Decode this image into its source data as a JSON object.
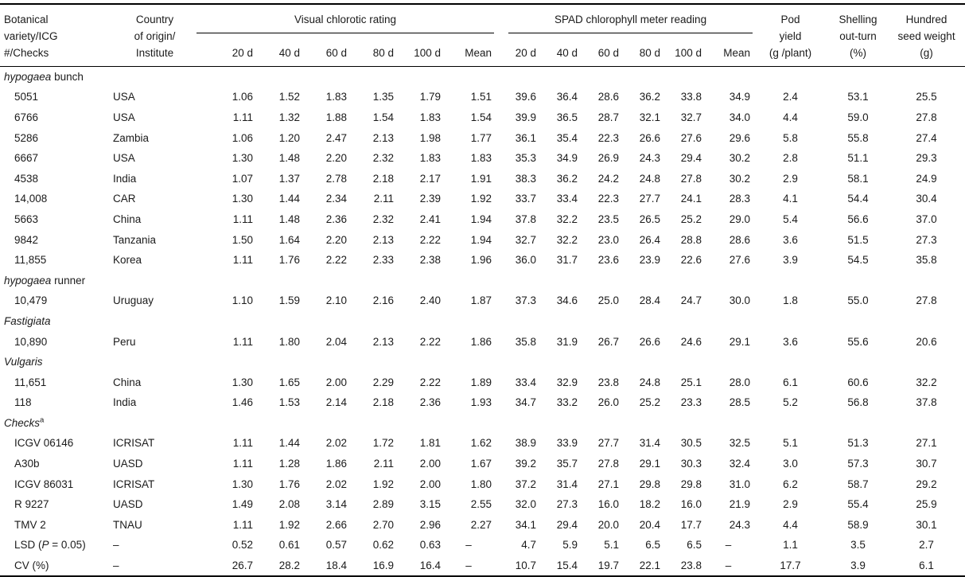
{
  "table": {
    "headers": {
      "col_name": [
        "Botanical",
        "variety/ICG",
        "#/Checks"
      ],
      "col_country": [
        "Country",
        "of origin/",
        "Institute"
      ],
      "group_visual": "Visual chlorotic rating",
      "group_spad": "SPAD chlorophyll meter reading",
      "sub_columns": [
        "20 d",
        "40 d",
        "60 d",
        "80 d",
        "100 d",
        "Mean"
      ],
      "col_pod": [
        "Pod",
        "yield",
        "(g /plant)"
      ],
      "col_shelling": [
        "Shelling",
        "out-turn",
        "(%)"
      ],
      "col_hsw": [
        "Hundred",
        "seed weight",
        "(g)"
      ]
    },
    "rows": [
      {
        "type": "section",
        "segments": [
          {
            "text": "hypogaea",
            "italic": true
          },
          {
            "text": " bunch"
          }
        ]
      },
      {
        "type": "data",
        "name": "5051",
        "country": "USA",
        "visual": [
          "1.06",
          "1.52",
          "1.83",
          "1.35",
          "1.79",
          "1.51"
        ],
        "spad": [
          "39.6",
          "36.4",
          "28.6",
          "36.2",
          "33.8",
          "34.9"
        ],
        "pod": "2.4",
        "shelling": "53.1",
        "hsw": "25.5"
      },
      {
        "type": "data",
        "name": "6766",
        "country": "USA",
        "visual": [
          "1.11",
          "1.32",
          "1.88",
          "1.54",
          "1.83",
          "1.54"
        ],
        "spad": [
          "39.9",
          "36.5",
          "28.7",
          "32.1",
          "32.7",
          "34.0"
        ],
        "pod": "4.4",
        "shelling": "59.0",
        "hsw": "27.8"
      },
      {
        "type": "data",
        "name": "5286",
        "country": "Zambia",
        "visual": [
          "1.06",
          "1.20",
          "2.47",
          "2.13",
          "1.98",
          "1.77"
        ],
        "spad": [
          "36.1",
          "35.4",
          "22.3",
          "26.6",
          "27.6",
          "29.6"
        ],
        "pod": "5.8",
        "shelling": "55.8",
        "hsw": "27.4"
      },
      {
        "type": "data",
        "name": "6667",
        "country": "USA",
        "visual": [
          "1.30",
          "1.48",
          "2.20",
          "2.32",
          "1.83",
          "1.83"
        ],
        "spad": [
          "35.3",
          "34.9",
          "26.9",
          "24.3",
          "29.4",
          "30.2"
        ],
        "pod": "2.8",
        "shelling": "51.1",
        "hsw": "29.3"
      },
      {
        "type": "data",
        "name": "4538",
        "country": "India",
        "visual": [
          "1.07",
          "1.37",
          "2.78",
          "2.18",
          "2.17",
          "1.91"
        ],
        "spad": [
          "38.3",
          "36.2",
          "24.2",
          "24.8",
          "27.8",
          "30.2"
        ],
        "pod": "2.9",
        "shelling": "58.1",
        "hsw": "24.9"
      },
      {
        "type": "data",
        "name": "14,008",
        "country": "CAR",
        "visual": [
          "1.30",
          "1.44",
          "2.34",
          "2.11",
          "2.39",
          "1.92"
        ],
        "spad": [
          "33.7",
          "33.4",
          "22.3",
          "27.7",
          "24.1",
          "28.3"
        ],
        "pod": "4.1",
        "shelling": "54.4",
        "hsw": "30.4"
      },
      {
        "type": "data",
        "name": "5663",
        "country": "China",
        "visual": [
          "1.11",
          "1.48",
          "2.36",
          "2.32",
          "2.41",
          "1.94"
        ],
        "spad": [
          "37.8",
          "32.2",
          "23.5",
          "26.5",
          "25.2",
          "29.0"
        ],
        "pod": "5.4",
        "shelling": "56.6",
        "hsw": "37.0"
      },
      {
        "type": "data",
        "name": "9842",
        "country": "Tanzania",
        "visual": [
          "1.50",
          "1.64",
          "2.20",
          "2.13",
          "2.22",
          "1.94"
        ],
        "spad": [
          "32.7",
          "32.2",
          "23.0",
          "26.4",
          "28.8",
          "28.6"
        ],
        "pod": "3.6",
        "shelling": "51.5",
        "hsw": "27.3"
      },
      {
        "type": "data",
        "name": "11,855",
        "country": "Korea",
        "visual": [
          "1.11",
          "1.76",
          "2.22",
          "2.33",
          "2.38",
          "1.96"
        ],
        "spad": [
          "36.0",
          "31.7",
          "23.6",
          "23.9",
          "22.6",
          "27.6"
        ],
        "pod": "3.9",
        "shelling": "54.5",
        "hsw": "35.8"
      },
      {
        "type": "section",
        "segments": [
          {
            "text": "hypogaea",
            "italic": true
          },
          {
            "text": " runner"
          }
        ]
      },
      {
        "type": "data",
        "name": "10,479",
        "country": "Uruguay",
        "visual": [
          "1.10",
          "1.59",
          "2.10",
          "2.16",
          "2.40",
          "1.87"
        ],
        "spad": [
          "37.3",
          "34.6",
          "25.0",
          "28.4",
          "24.7",
          "30.0"
        ],
        "pod": "1.8",
        "shelling": "55.0",
        "hsw": "27.8"
      },
      {
        "type": "section",
        "segments": [
          {
            "text": "Fastigiata",
            "italic": true
          }
        ]
      },
      {
        "type": "data",
        "name": "10,890",
        "country": "Peru",
        "visual": [
          "1.11",
          "1.80",
          "2.04",
          "2.13",
          "2.22",
          "1.86"
        ],
        "spad": [
          "35.8",
          "31.9",
          "26.7",
          "26.6",
          "24.6",
          "29.1"
        ],
        "pod": "3.6",
        "shelling": "55.6",
        "hsw": "20.6"
      },
      {
        "type": "section",
        "segments": [
          {
            "text": "Vulgaris",
            "italic": true
          }
        ]
      },
      {
        "type": "data",
        "name": "11,651",
        "country": "China",
        "visual": [
          "1.30",
          "1.65",
          "2.00",
          "2.29",
          "2.22",
          "1.89"
        ],
        "spad": [
          "33.4",
          "32.9",
          "23.8",
          "24.8",
          "25.1",
          "28.0"
        ],
        "pod": "6.1",
        "shelling": "60.6",
        "hsw": "32.2"
      },
      {
        "type": "data",
        "name": "118",
        "country": "India",
        "visual": [
          "1.46",
          "1.53",
          "2.14",
          "2.18",
          "2.36",
          "1.93"
        ],
        "spad": [
          "34.7",
          "33.2",
          "26.0",
          "25.2",
          "23.3",
          "28.5"
        ],
        "pod": "5.2",
        "shelling": "56.8",
        "hsw": "37.8"
      },
      {
        "type": "section",
        "segments": [
          {
            "text": "Checks",
            "italic": true
          },
          {
            "text": "a",
            "sup": true
          }
        ]
      },
      {
        "type": "data",
        "name": "ICGV 06146",
        "country": "ICRISAT",
        "visual": [
          "1.11",
          "1.44",
          "2.02",
          "1.72",
          "1.81",
          "1.62"
        ],
        "spad": [
          "38.9",
          "33.9",
          "27.7",
          "31.4",
          "30.5",
          "32.5"
        ],
        "pod": "5.1",
        "shelling": "51.3",
        "hsw": "27.1"
      },
      {
        "type": "data",
        "name": "A30b",
        "country": "UASD",
        "visual": [
          "1.11",
          "1.28",
          "1.86",
          "2.11",
          "2.00",
          "1.67"
        ],
        "spad": [
          "39.2",
          "35.7",
          "27.8",
          "29.1",
          "30.3",
          "32.4"
        ],
        "pod": "3.0",
        "shelling": "57.3",
        "hsw": "30.7"
      },
      {
        "type": "data",
        "name": "ICGV 86031",
        "country": "ICRISAT",
        "visual": [
          "1.30",
          "1.76",
          "2.02",
          "1.92",
          "2.00",
          "1.80"
        ],
        "spad": [
          "37.2",
          "31.4",
          "27.1",
          "29.8",
          "29.8",
          "31.0"
        ],
        "pod": "6.2",
        "shelling": "58.7",
        "hsw": "29.2"
      },
      {
        "type": "data",
        "name": "R 9227",
        "country": "UASD",
        "visual": [
          "1.49",
          "2.08",
          "3.14",
          "2.89",
          "3.15",
          "2.55"
        ],
        "spad": [
          "32.0",
          "27.3",
          "16.0",
          "18.2",
          "16.0",
          "21.9"
        ],
        "pod": "2.9",
        "shelling": "55.4",
        "hsw": "25.9"
      },
      {
        "type": "data",
        "name": "TMV 2",
        "country": "TNAU",
        "visual": [
          "1.11",
          "1.92",
          "2.66",
          "2.70",
          "2.96",
          "2.27"
        ],
        "spad": [
          "34.1",
          "29.4",
          "20.0",
          "20.4",
          "17.7",
          "24.3"
        ],
        "pod": "4.4",
        "shelling": "58.9",
        "hsw": "30.1"
      },
      {
        "type": "data",
        "name_segments": [
          {
            "text": "LSD ("
          },
          {
            "text": "P",
            "italic": true
          },
          {
            "text": " = 0.05)"
          }
        ],
        "country": "–",
        "visual": [
          "0.52",
          "0.61",
          "0.57",
          "0.62",
          "0.63",
          "–"
        ],
        "spad": [
          "4.7",
          "5.9",
          "5.1",
          "6.5",
          "6.5",
          "–"
        ],
        "pod": "1.1",
        "shelling": "3.5",
        "hsw": "2.7"
      },
      {
        "type": "data",
        "name": "CV (%)",
        "country": "–",
        "visual": [
          "26.7",
          "28.2",
          "18.4",
          "16.9",
          "16.4",
          "–"
        ],
        "spad": [
          "10.7",
          "15.4",
          "19.7",
          "22.1",
          "23.8",
          "–"
        ],
        "pod": "17.7",
        "shelling": "3.9",
        "hsw": "6.1"
      }
    ]
  }
}
